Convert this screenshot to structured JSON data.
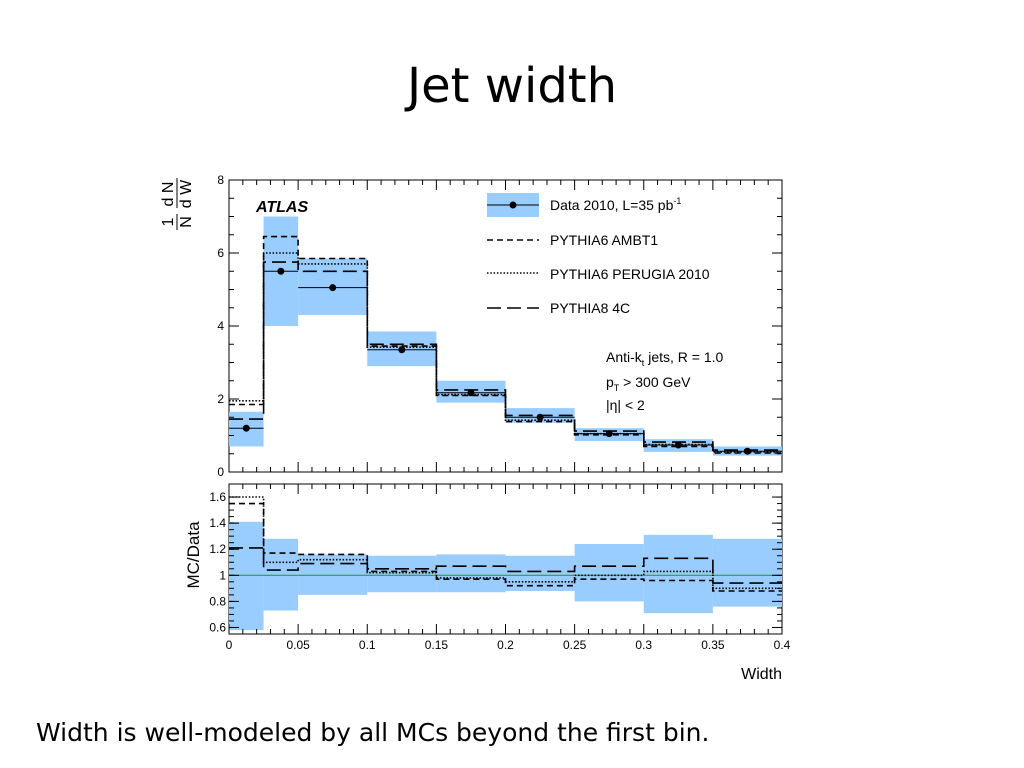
{
  "slide": {
    "title": "Jet width",
    "caption": "Width is well-modeled by all MCs beyond the first bin."
  },
  "chart_data": [
    {
      "type": "histogram",
      "panel": "main",
      "ylabel": "1/N dN/dW",
      "ylabel_parts": {
        "one": "1",
        "N": "N",
        "dN": "d N",
        "dW": "d W"
      },
      "brand": "ATLAS",
      "annotation": {
        "line1": "Anti-k",
        "line1_sub": "t",
        "line1_rest": " jets, R = 1.0",
        "line2": "p",
        "line2_sub": "T",
        "line2_rest": " > 300 GeV",
        "line3": "|η| < 2"
      },
      "legend_placement": "top-right",
      "legend": [
        {
          "label": "Data 2010, L=35 pb",
          "sup": "-1",
          "style": "marker-band"
        },
        {
          "label": "PYTHIA6 AMBT1",
          "style": "dashed"
        },
        {
          "label": "PYTHIA6 PERUGIA 2010",
          "style": "dotted"
        },
        {
          "label": "PYTHIA8 4C",
          "style": "long-dash"
        }
      ],
      "ylim": [
        0,
        8
      ],
      "yticks": [
        "0",
        "2",
        "4",
        "6",
        "8"
      ],
      "bin_edges": [
        0,
        0.025,
        0.05,
        0.1,
        0.15,
        0.2,
        0.25,
        0.3,
        0.35,
        0.4
      ],
      "data": {
        "values": [
          1.2,
          5.5,
          5.05,
          3.35,
          2.17,
          1.5,
          1.05,
          0.74,
          0.57
        ],
        "band_low": [
          0.7,
          4.0,
          4.3,
          2.9,
          1.9,
          1.35,
          0.85,
          0.55,
          0.45
        ],
        "band_high": [
          1.65,
          7.0,
          5.85,
          3.85,
          2.5,
          1.75,
          1.2,
          0.9,
          0.7
        ]
      },
      "series": [
        {
          "name": "PYTHIA6 AMBT1",
          "style": "dashed",
          "values": [
            1.85,
            6.45,
            5.85,
            3.45,
            2.1,
            1.38,
            1.02,
            0.7,
            0.52
          ]
        },
        {
          "name": "PYTHIA6 PERUGIA 2010",
          "style": "dotted",
          "values": [
            1.95,
            6.0,
            5.7,
            3.42,
            2.12,
            1.42,
            1.05,
            0.75,
            0.55
          ]
        },
        {
          "name": "PYTHIA8 4C",
          "style": "long-dash",
          "values": [
            1.45,
            5.75,
            5.5,
            3.5,
            2.25,
            1.55,
            1.12,
            0.82,
            0.6
          ]
        }
      ]
    },
    {
      "type": "histogram",
      "panel": "ratio",
      "xlabel": "Width",
      "ylabel": "MC/Data",
      "ylim": [
        0.55,
        1.7
      ],
      "yticks": [
        "0.6",
        "0.8",
        "1",
        "1.2",
        "1.4",
        "1.6"
      ],
      "xticks": [
        "0",
        "0.05",
        "0.1",
        "0.15",
        "0.2",
        "0.25",
        "0.3",
        "0.35",
        "0.4"
      ],
      "reference_line": 1,
      "reference_color": "#2e9e3e",
      "band_color": "#99ccff",
      "bin_edges": [
        0,
        0.025,
        0.05,
        0.1,
        0.15,
        0.2,
        0.25,
        0.3,
        0.35,
        0.4
      ],
      "band_low": [
        0.58,
        0.73,
        0.85,
        0.87,
        0.87,
        0.88,
        0.8,
        0.71,
        0.76
      ],
      "band_high": [
        1.41,
        1.28,
        1.16,
        1.15,
        1.16,
        1.15,
        1.24,
        1.31,
        1.28
      ],
      "series": [
        {
          "name": "PYTHIA6 AMBT1",
          "style": "dashed",
          "values": [
            1.55,
            1.17,
            1.16,
            1.03,
            0.97,
            0.92,
            0.97,
            0.96,
            0.88
          ]
        },
        {
          "name": "PYTHIA6 PERUGIA 2010",
          "style": "dotted",
          "values": [
            1.6,
            1.1,
            1.12,
            1.02,
            0.98,
            0.95,
            1.0,
            1.03,
            0.9
          ]
        },
        {
          "name": "PYTHIA8 4C",
          "style": "long-dash",
          "values": [
            1.21,
            1.04,
            1.09,
            1.05,
            1.07,
            1.03,
            1.07,
            1.13,
            0.94
          ]
        }
      ]
    }
  ]
}
